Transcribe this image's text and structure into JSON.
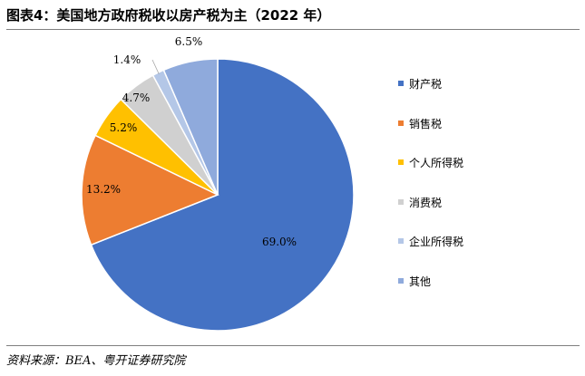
{
  "figure": {
    "title": "图表4：美国地方政府税收以房产税为主（2022 年）",
    "source": "资料来源：BEA、粤开证券研究院"
  },
  "chart_data": {
    "type": "pie",
    "title": "",
    "labels": [
      "财产税",
      "销售税",
      "个人所得税",
      "消费税",
      "企业所得税",
      "其他"
    ],
    "values": [
      69.0,
      13.2,
      5.2,
      4.7,
      1.4,
      6.5
    ],
    "value_labels": [
      "69.0%",
      "13.2%",
      "5.2%",
      "4.7%",
      "1.4%",
      "6.5%"
    ],
    "colors": [
      "#4472c4",
      "#ed7d31",
      "#ffc000",
      "#d0d0d0",
      "#b4c7e7",
      "#8faadc"
    ],
    "start_angle_deg": 0,
    "direction": "clockwise",
    "legend_position": "right",
    "unit": "%"
  }
}
